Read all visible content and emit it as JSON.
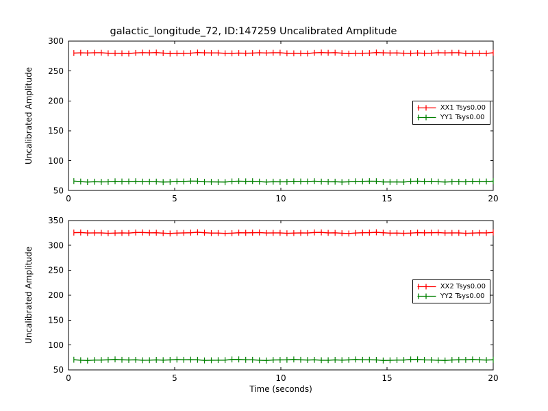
{
  "figure": {
    "title": "galactic_longitude_72, ID:147259 Uncalibrated Amplitude",
    "background_color": "#ffffff",
    "text_color": "#000000",
    "axis_color": "#000000"
  },
  "chart_data": [
    {
      "type": "line",
      "subplot": "top",
      "xlabel": "",
      "ylabel": "Uncalibrated Amplitude",
      "xlim": [
        0,
        20
      ],
      "ylim": [
        50,
        300
      ],
      "xticks": [
        0,
        5,
        10,
        15,
        20
      ],
      "yticks": [
        50,
        100,
        150,
        200,
        250,
        300
      ],
      "grid": false,
      "tick_direction": "in",
      "legend": {
        "position": "center-right",
        "entries": [
          "XX1 Tsys0.00",
          "YY1 Tsys0.00"
        ]
      },
      "x_start": 0.25,
      "x_end": 20,
      "n_points": 62,
      "series": [
        {
          "name": "XX1 Tsys0.00",
          "color": "#ff0000",
          "value": 280,
          "errorbar": 5,
          "style": "errorbar-line"
        },
        {
          "name": "YY1 Tsys0.00",
          "color": "#008000",
          "value": 65,
          "errorbar": 5,
          "style": "errorbar-line"
        }
      ]
    },
    {
      "type": "line",
      "subplot": "bottom",
      "xlabel": "Time (seconds)",
      "ylabel": "Uncalibrated Amplitude",
      "xlim": [
        0,
        20
      ],
      "ylim": [
        50,
        350
      ],
      "xticks": [
        0,
        5,
        10,
        15,
        20
      ],
      "yticks": [
        50,
        100,
        150,
        200,
        250,
        300,
        350
      ],
      "grid": false,
      "tick_direction": "in",
      "legend": {
        "position": "center-right",
        "entries": [
          "XX2 Tsys0.00",
          "YY2 Tsys0.00"
        ]
      },
      "x_start": 0.25,
      "x_end": 20,
      "n_points": 62,
      "series": [
        {
          "name": "XX2 Tsys0.00",
          "color": "#ff0000",
          "value": 325,
          "errorbar": 6,
          "style": "errorbar-line"
        },
        {
          "name": "YY2 Tsys0.00",
          "color": "#008000",
          "value": 70,
          "errorbar": 6,
          "style": "errorbar-line"
        }
      ]
    }
  ]
}
